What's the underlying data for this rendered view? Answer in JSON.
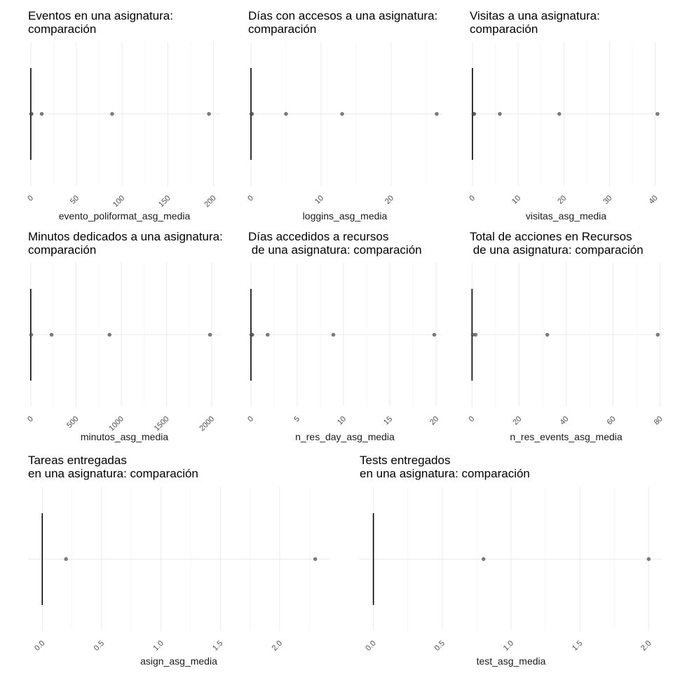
{
  "colors": {
    "background": "#ffffff",
    "grid": "#ebebeb",
    "box": "#000000",
    "points": "#555555"
  },
  "chart_data": [
    {
      "type": "boxplot",
      "title": "Eventos en una asignatura:\ncomparación",
      "xlabel": "evento_poliformat_asg_media",
      "xlim": [
        -3,
        208
      ],
      "ticks": [
        0,
        50,
        100,
        150,
        200
      ],
      "tick_labels": [
        "0",
        "50",
        "100",
        "150",
        "200"
      ],
      "box": {
        "q1": 0,
        "median": 0,
        "q3": 0
      },
      "outliers": [
        0.4,
        0.8,
        12,
        89,
        195
      ],
      "grid": true
    },
    {
      "type": "boxplot",
      "title": "Días con accesos a una asignatura:\ncomparación",
      "xlabel": "loggins_asg_media",
      "xlim": [
        -0.4,
        27.2
      ],
      "ticks": [
        0,
        10,
        20
      ],
      "tick_labels": [
        "0",
        "10",
        "20"
      ],
      "box": {
        "q1": 0,
        "median": 0,
        "q3": 0
      },
      "outliers": [
        0.05,
        0.15,
        5,
        13,
        26.5
      ],
      "grid": true
    },
    {
      "type": "boxplot",
      "title": "Visitas a una asignatura:\ncomparación",
      "xlabel": "visitas_asg_media",
      "xlim": [
        -0.6,
        41.6
      ],
      "ticks": [
        0,
        10,
        20,
        30,
        40
      ],
      "tick_labels": [
        "0",
        "10",
        "20",
        "30",
        "40"
      ],
      "box": {
        "q1": 0,
        "median": 0,
        "q3": 0
      },
      "outliers": [
        0.2,
        0.4,
        6,
        19,
        40.5
      ],
      "grid": true
    },
    {
      "type": "boxplot",
      "title": "Minutos dedicados a una asignatura:\ncomparación",
      "xlabel": "minutos_asg_media",
      "xlim": [
        -30,
        2100
      ],
      "ticks": [
        0,
        500,
        1000,
        1500,
        2000
      ],
      "tick_labels": [
        "0",
        "500",
        "1000",
        "1500",
        "2000"
      ],
      "box": {
        "q1": 0,
        "median": 0,
        "q3": 0
      },
      "outliers": [
        5,
        230,
        870,
        1980
      ],
      "grid": true
    },
    {
      "type": "boxplot",
      "title": "Días accedidos a recursos\n de una asignatura: comparación",
      "xlabel": "n_res_day_asg_media",
      "xlim": [
        -0.3,
        20.6
      ],
      "ticks": [
        0,
        5,
        10,
        15,
        20
      ],
      "tick_labels": [
        "0",
        "5",
        "10",
        "15",
        "20"
      ],
      "box": {
        "q1": 0,
        "median": 0,
        "q3": 0
      },
      "outliers": [
        0.05,
        0.15,
        1.8,
        8.9,
        19.8
      ],
      "grid": true
    },
    {
      "type": "boxplot",
      "title": "Total de acciones en Recursos\n de una asignatura: comparación",
      "xlabel": "n_res_events_asg_media",
      "xlim": [
        -1,
        81
      ],
      "ticks": [
        0,
        20,
        40,
        60,
        80
      ],
      "tick_labels": [
        "0",
        "20",
        "40",
        "60",
        "80"
      ],
      "box": {
        "q1": 0,
        "median": 0,
        "q3": 0
      },
      "outliers": [
        0.3,
        1.5,
        32,
        79
      ],
      "grid": true
    },
    {
      "type": "boxplot",
      "title": "Tareas entregadas\nen una asignatura: comparación",
      "xlabel": "asign_asg_media",
      "xlim": [
        -0.12,
        2.42
      ],
      "ticks": [
        0,
        0.5,
        1,
        1.5,
        2
      ],
      "tick_labels": [
        "0.0",
        "0.5",
        "1.0",
        "1.5",
        "2.0"
      ],
      "box": {
        "q1": 0,
        "median": 0,
        "q3": 0
      },
      "outliers": [
        0.2,
        2.3
      ],
      "grid": true
    },
    {
      "type": "boxplot",
      "title": "Tests entregados\nen una asignatura: comparación",
      "xlabel": "test_asg_media",
      "xlim": [
        -0.1,
        2.1
      ],
      "ticks": [
        0,
        0.5,
        1,
        1.5,
        2
      ],
      "tick_labels": [
        "0.0",
        "0.5",
        "1.0",
        "1.5",
        "2.0"
      ],
      "box": {
        "q1": 0,
        "median": 0,
        "q3": 0
      },
      "outliers": [
        0.8,
        2.0
      ],
      "grid": true
    }
  ]
}
